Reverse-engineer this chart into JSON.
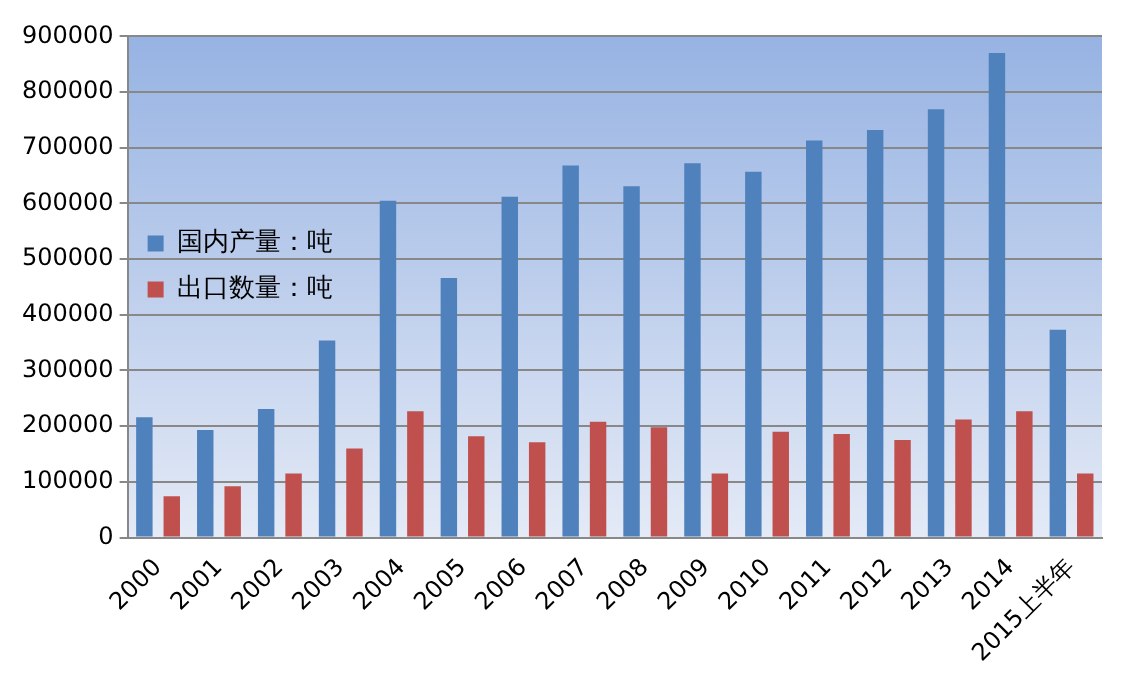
{
  "chart_data": {
    "type": "bar",
    "categories": [
      "2000",
      "2001",
      "2002",
      "2003",
      "2004",
      "2005",
      "2006",
      "2007",
      "2008",
      "2009",
      "2010",
      "2011",
      "2012",
      "2013",
      "2014",
      "2015上半年"
    ],
    "series": [
      {
        "name": "国内产量：吨",
        "color": "#4f81bd",
        "values": [
          216000,
          193000,
          231000,
          354000,
          605000,
          466000,
          612000,
          668000,
          631000,
          672000,
          657000,
          713000,
          732000,
          769000,
          870000,
          373000
        ]
      },
      {
        "name": "出口数量：吨",
        "color": "#c0504d",
        "values": [
          74000,
          92000,
          115000,
          160000,
          227000,
          182000,
          171000,
          208000,
          198000,
          115000,
          190000,
          186000,
          175000,
          212000,
          227000,
          115000
        ]
      }
    ],
    "ylim": [
      0,
      900000
    ],
    "yticks": [
      0,
      100000,
      200000,
      300000,
      400000,
      500000,
      600000,
      700000,
      800000,
      900000
    ],
    "grid": "y",
    "legend": "top"
  }
}
